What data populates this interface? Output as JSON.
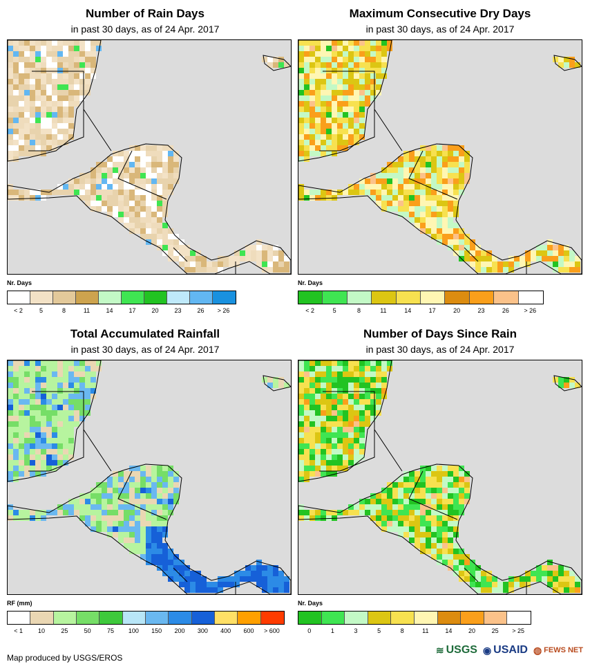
{
  "panels": [
    {
      "id": "rain-days",
      "title": "Number of Rain Days",
      "subtitle": "in past 30 days, as of 24 Apr. 2017",
      "unit": "Nr. Days",
      "legend_colors": [
        "#ffffff",
        "#f3e2c6",
        "#e3c99a",
        "#cda34e",
        "#c3f9c6",
        "#3fe552",
        "#22c322",
        "#bfe9fa",
        "#62b7f2",
        "#1991df"
      ],
      "legend_labels": [
        "< 2",
        "5",
        "8",
        "11",
        "14",
        "17",
        "20",
        "23",
        "26",
        "> 26"
      ],
      "land_palette": [
        "#e8d3ad",
        "#f3e2c6",
        "#d9b77a",
        "#ffffff",
        "#efdcbc"
      ],
      "accent": [
        "#3fe552",
        "#62b7f2"
      ]
    },
    {
      "id": "max-dry-days",
      "title": "Maximum Consecutive Dry Days",
      "subtitle": "in past 30 days, as of 24 Apr. 2017",
      "unit": "Nr. Days",
      "legend_colors": [
        "#22c322",
        "#3fe552",
        "#c3f9c6",
        "#dcc613",
        "#f7e150",
        "#fff6b3",
        "#dc8c10",
        "#fa9f1b",
        "#fbc28a",
        "#ffffff"
      ],
      "legend_labels": [
        "< 2",
        "5",
        "8",
        "11",
        "14",
        "17",
        "20",
        "23",
        "26",
        "> 26"
      ],
      "land_palette": [
        "#dcc613",
        "#c3f9c6",
        "#f7e150",
        "#fa9f1b",
        "#fff6b3"
      ],
      "accent": [
        "#22c322",
        "#fbc28a"
      ]
    },
    {
      "id": "total-rainfall",
      "title": "Total Accumulated Rainfall",
      "subtitle": "in past 30 days, as of 24 Apr. 2017",
      "unit": "RF (mm)",
      "legend_colors": [
        "#ffffff",
        "#ead7b3",
        "#b7f49f",
        "#76de67",
        "#3ec93c",
        "#b8e6f7",
        "#6ab8f0",
        "#2c8be6",
        "#1660d8",
        "#ffe066",
        "#ffa000",
        "#ff3c00"
      ],
      "legend_labels": [
        "< 1",
        "10",
        "25",
        "50",
        "75",
        "100",
        "150",
        "200",
        "300",
        "400",
        "600",
        "> 600"
      ],
      "land_palette": [
        "#b7f49f",
        "#76de67",
        "#b7f49f",
        "#ead7b3",
        "#6ab8f0"
      ],
      "accent": [
        "#2c8be6",
        "#1660d8"
      ]
    },
    {
      "id": "days-since-rain",
      "title": "Number of Days Since Rain",
      "subtitle": "in past 30 days, as of 24 Apr. 2017",
      "unit": "Nr. Days",
      "legend_colors": [
        "#22c322",
        "#3fe552",
        "#c3f9c6",
        "#dcc613",
        "#f7e150",
        "#fff6b3",
        "#dc8c10",
        "#fa9f1b",
        "#fbc28a",
        "#ffffff"
      ],
      "legend_labels": [
        "0",
        "1",
        "3",
        "5",
        "8",
        "11",
        "14",
        "20",
        "25",
        "> 25"
      ],
      "land_palette": [
        "#dcc613",
        "#22c322",
        "#c3f9c6",
        "#f7e150",
        "#3fe552"
      ],
      "accent": [
        "#fa9f1b",
        "#fbc28a"
      ]
    }
  ],
  "footer": {
    "credit": "Map produced by USGS/EROS",
    "logos": [
      "USGS",
      "USAID",
      "FEWS NET"
    ]
  }
}
